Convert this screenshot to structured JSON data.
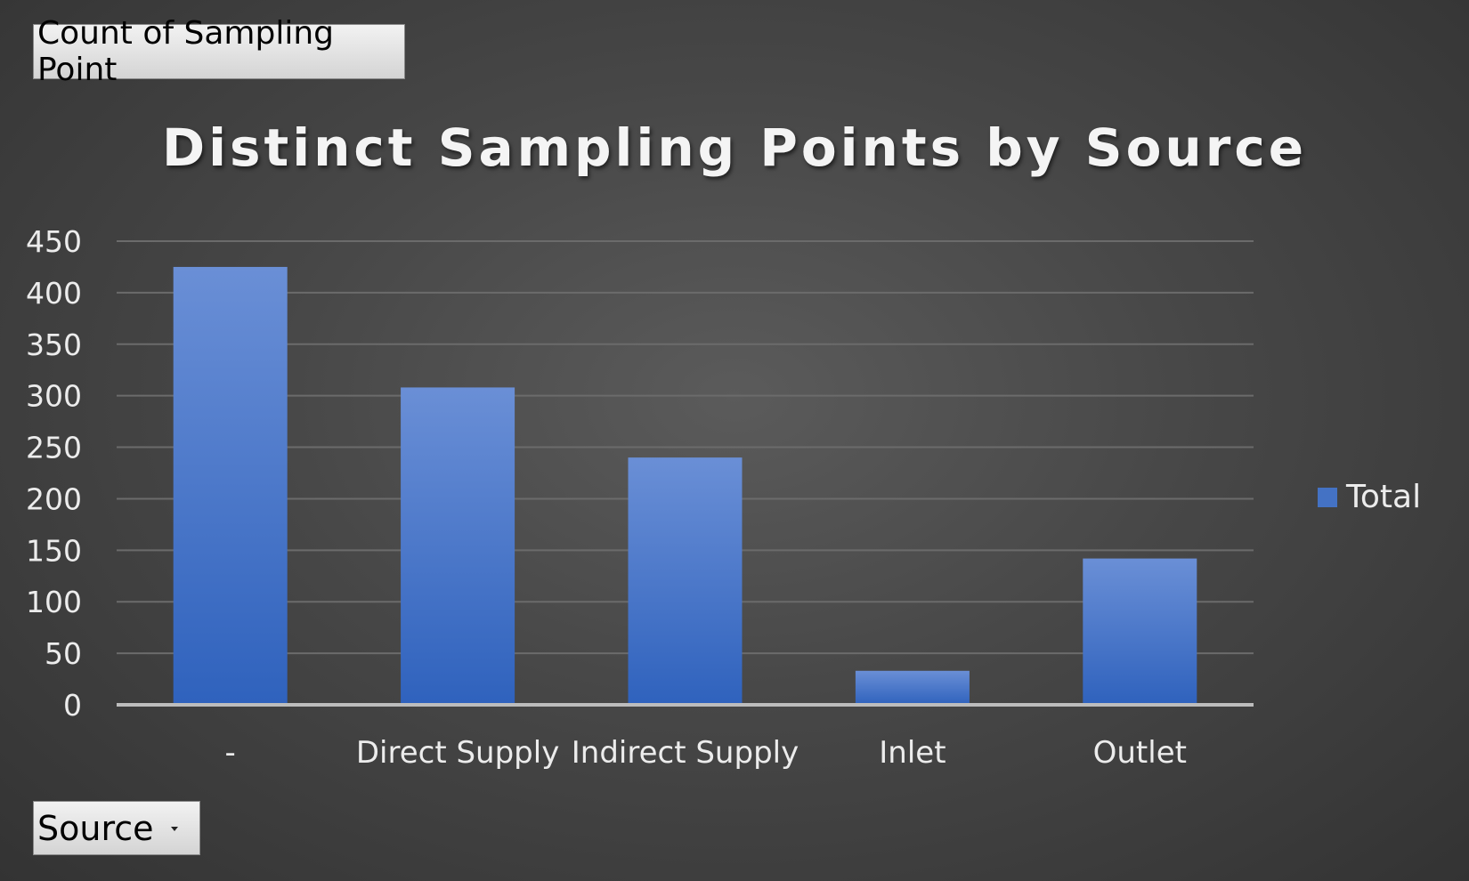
{
  "pivot": {
    "value_field_label": "Count of Sampling Point",
    "axis_field_label": "Source"
  },
  "colors": {
    "bar_top": "#6a8fd6",
    "bar_bottom": "#2f62bd",
    "gridline": "#6b6b6b",
    "axis_line": "#bdbdbd"
  },
  "chart_data": {
    "type": "bar",
    "title": "Distinct Sampling Points by Source",
    "xlabel": "",
    "ylabel": "",
    "categories": [
      "-",
      "Direct Supply",
      "Indirect Supply",
      "Inlet",
      "Outlet"
    ],
    "series": [
      {
        "name": "Total",
        "values": [
          425,
          308,
          240,
          33,
          142
        ]
      }
    ],
    "ylim": [
      0,
      450
    ],
    "yticks": [
      0,
      50,
      100,
      150,
      200,
      250,
      300,
      350,
      400,
      450
    ],
    "grid": true,
    "legend_position": "right"
  }
}
